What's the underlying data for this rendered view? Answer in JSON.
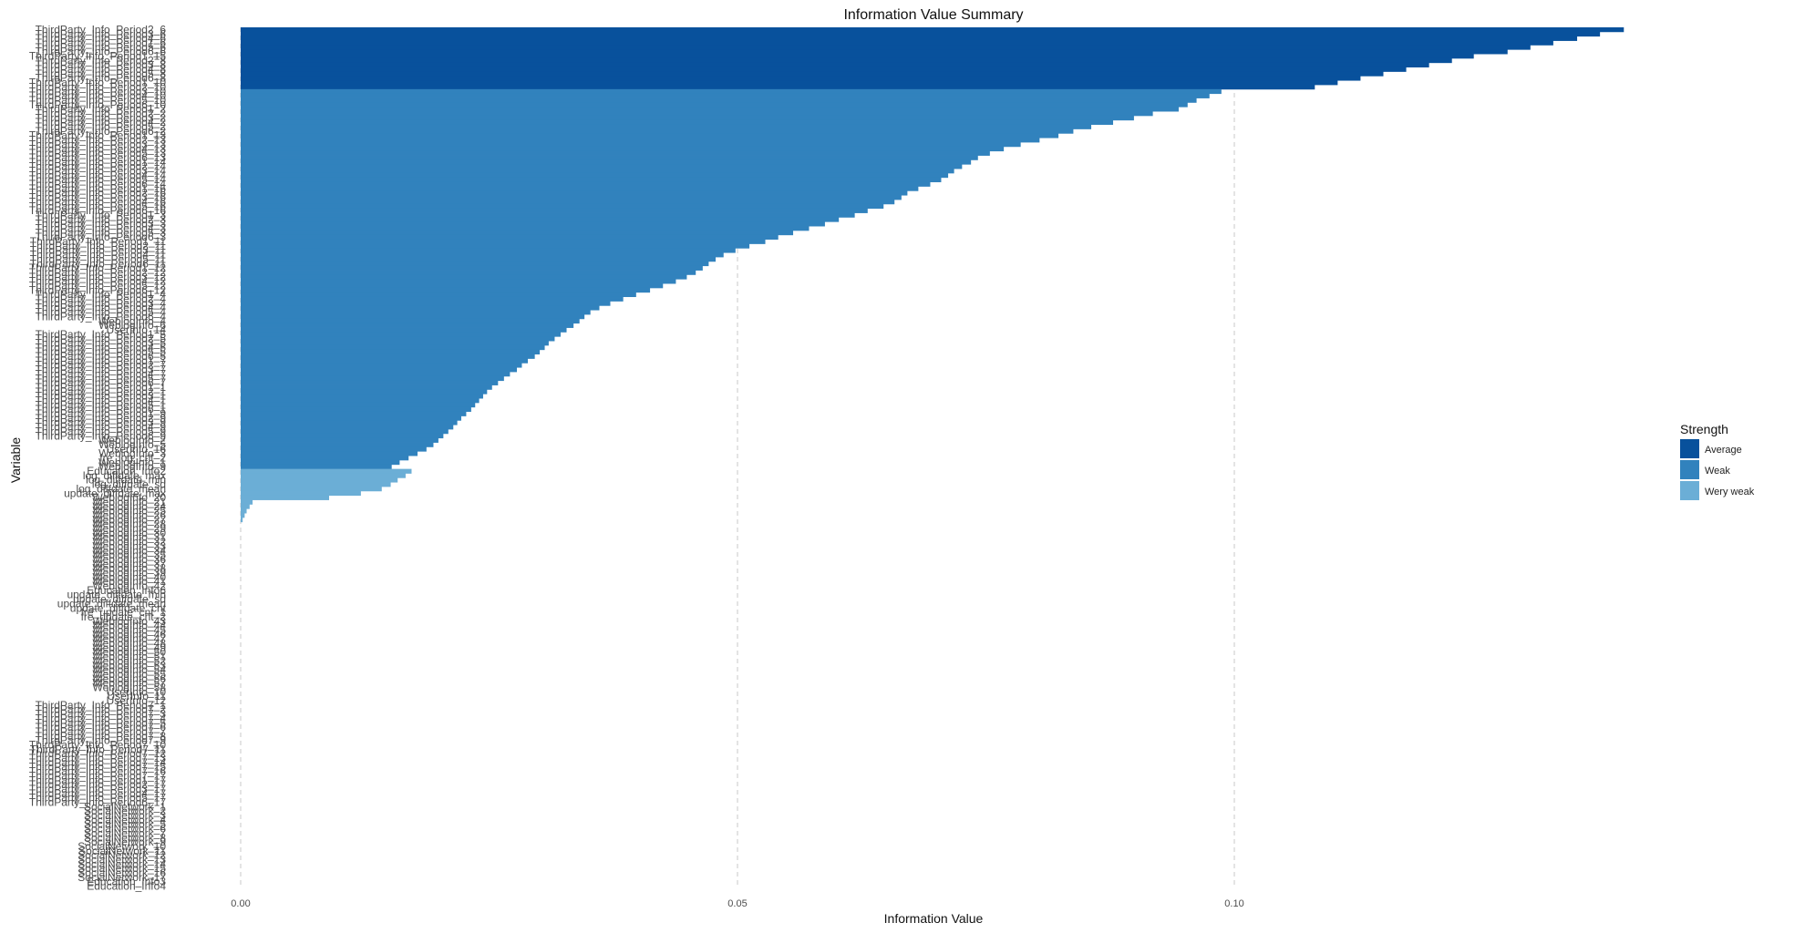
{
  "chart_data": {
    "type": "bar",
    "orientation": "horizontal",
    "title": "Information Value Summary",
    "xlabel": "Information Value",
    "ylabel": "Variable",
    "xlim": [
      0,
      0.14
    ],
    "x_ticks": [
      {
        "value": 0.0,
        "label": "0.00"
      },
      {
        "value": 0.05,
        "label": "0.05"
      },
      {
        "value": 0.1,
        "label": "0.10"
      }
    ],
    "grid": "vertical-dashed",
    "legend": {
      "title": "Strength",
      "placement": "right",
      "entries": [
        {
          "key": "Average",
          "label": "Average",
          "color": "#08519c"
        },
        {
          "key": "Weak",
          "label": "Weak",
          "color": "#3182bd"
        },
        {
          "key": "Very weak",
          "label": "Wery weak",
          "color": "#6baed6"
        }
      ]
    },
    "visible_category_labels": [
      "ThirdParty_Info_Period2_6",
      "ThirdParty_Info_Period3_6",
      "ThirdParty_Info_Period4_6",
      "ThirdParty_Info_Period1_6",
      "ThirdParty_Info_Period5_6",
      "ThirdParty_Info_Period6_6",
      "ThirdParty_Info_Period1_15",
      "ThirdParty_Info_Period2_8",
      "ThirdParty_Info_Period3_8",
      "ThirdParty_Info_Period4_8",
      "ThirdParty_Info_Period5_8",
      "ThirdParty_Info_Period6_8",
      "ThirdParty_Info_Period1_10",
      "ThirdParty_Info_Period2_10",
      "ThirdParty_Info_Period3_10",
      "ThirdParty_Info_Period4_10",
      "ThirdParty_Info_Period5_10",
      "ThirdParty_Info_Period6_10",
      "ThirdParty_Info_Period1_2",
      "ThirdParty_Info_Period2_2",
      "ThirdParty_Info_Period3_2",
      "ThirdParty_Info_Period4_2",
      "ThirdParty_Info_Period5_2",
      "ThirdParty_Info_Period6_2",
      "ThirdParty_Info_Period1_13",
      "ThirdParty_Info_Period2_13",
      "ThirdParty_Info_Period3_13",
      "ThirdParty_Info_Period4_13",
      "ThirdParty_Info_Period5_13",
      "ThirdParty_Info_Period6_13",
      "ThirdParty_Info_Period1_14",
      "ThirdParty_Info_Period2_14",
      "ThirdParty_Info_Period3_14",
      "ThirdParty_Info_Period4_14",
      "ThirdParty_Info_Period5_14",
      "ThirdParty_Info_Period6_14",
      "ThirdParty_Info_Period1_16",
      "ThirdParty_Info_Period2_16",
      "ThirdParty_Info_Period3_16",
      "ThirdParty_Info_Period4_16",
      "ThirdParty_Info_Period5_16",
      "ThirdParty_Info_Period6_16",
      "ThirdParty_Info_Period1_3",
      "ThirdParty_Info_Period2_3",
      "ThirdParty_Info_Period3_3",
      "ThirdParty_Info_Period4_3",
      "ThirdParty_Info_Period5_3",
      "ThirdParty_Info_Period6_3",
      "ThirdParty_Info_Period1_11",
      "ThirdParty_Info_Period2_11",
      "ThirdParty_Info_Period3_11",
      "ThirdParty_Info_Period4_11",
      "ThirdParty_Info_Period5_11",
      "ThirdParty_Info_Period6_11",
      "ThirdParty_Info_Period1_12",
      "ThirdParty_Info_Period2_12",
      "ThirdParty_Info_Period3_12",
      "ThirdParty_Info_Period4_12",
      "ThirdParty_Info_Period5_12",
      "ThirdParty_Info_Period6_12",
      "ThirdParty_Info_Period1_4",
      "ThirdParty_Info_Period2_4",
      "ThirdParty_Info_Period3_4",
      "ThirdParty_Info_Period4_4",
      "ThirdParty_Info_Period5_4",
      "ThirdParty_Info_Period6_4",
      "WeblogInfo_4",
      "WeblogInfo_6",
      "UserInfo_14",
      "ThirdParty_Info_Period1_5",
      "ThirdParty_Info_Period2_5",
      "ThirdParty_Info_Period3_5",
      "ThirdParty_Info_Period4_5",
      "ThirdParty_Info_Period5_5",
      "ThirdParty_Info_Period6_5",
      "ThirdParty_Info_Period1_7",
      "ThirdParty_Info_Period2_7",
      "ThirdParty_Info_Period3_7",
      "ThirdParty_Info_Period4_7",
      "ThirdParty_Info_Period5_7",
      "ThirdParty_Info_Period6_7",
      "ThirdParty_Info_Period1_1",
      "ThirdParty_Info_Period2_1",
      "ThirdParty_Info_Period3_1",
      "ThirdParty_Info_Period4_1",
      "ThirdParty_Info_Period5_1",
      "ThirdParty_Info_Period6_1",
      "ThirdParty_Info_Period1_9",
      "ThirdParty_Info_Period2_9",
      "ThirdParty_Info_Period3_9",
      "ThirdParty_Info_Period4_9",
      "ThirdParty_Info_Period5_9",
      "ThirdParty_Info_Period6_9",
      "WeblogInfo_2",
      "WeblogInfo_5",
      "UserInfo_16",
      "WeblogInfo_3",
      "fre_log_cnt_2",
      "WeblogInfo_1",
      "WeblogInfo_9",
      "Education_Info2",
      "log_diffdate_max",
      "log_diffdate_min",
      "log_diffdate_sd",
      "log_diffdate_mean",
      "update_diffdate_max",
      "WeblogInfo_20",
      "WeblogInfo_21",
      "WeblogInfo_24",
      "WeblogInfo_25",
      "WeblogInfo_26",
      "WeblogInfo_27",
      "WeblogInfo_28",
      "WeblogInfo_29",
      "WeblogInfo_30",
      "WeblogInfo_31",
      "WeblogInfo_32",
      "WeblogInfo_33",
      "WeblogInfo_34",
      "WeblogInfo_35",
      "WeblogInfo_36",
      "WeblogInfo_37",
      "WeblogInfo_38",
      "WeblogInfo_39",
      "WeblogInfo_40",
      "WeblogInfo_41",
      "WeblogInfo_42",
      "Education_Info6",
      "update_diffdate_min",
      "update_diffdate_sd",
      "update_diffdate_mean",
      "update_diffdate_cnt",
      "fre_update_cnt_1",
      "fre_update_cnt_2",
      "WeblogInfo_43",
      "WeblogInfo_44",
      "WeblogInfo_45",
      "WeblogInfo_46",
      "WeblogInfo_47",
      "WeblogInfo_48",
      "WeblogInfo_49",
      "WeblogInfo_50",
      "WeblogInfo_51",
      "WeblogInfo_52",
      "WeblogInfo_53",
      "WeblogInfo_54",
      "WeblogInfo_55",
      "WeblogInfo_56",
      "WeblogInfo_57",
      "WeblogInfo_58",
      "UserInfo_10",
      "UserInfo_11",
      "UserInfo_12",
      "ThirdParty_Info_Period7_1",
      "ThirdParty_Info_Period7_2",
      "ThirdParty_Info_Period7_3",
      "ThirdParty_Info_Period7_4",
      "ThirdParty_Info_Period7_5",
      "ThirdParty_Info_Period7_6",
      "ThirdParty_Info_Period7_7",
      "ThirdParty_Info_Period7_8",
      "ThirdParty_Info_Period7_9",
      "ThirdParty_Info_Period7_10",
      "ThirdParty_Info_Period7_11",
      "ThirdParty_Info_Period7_12",
      "ThirdParty_Info_Period7_13",
      "ThirdParty_Info_Period7_14",
      "ThirdParty_Info_Period7_15",
      "ThirdParty_Info_Period7_16",
      "ThirdParty_Info_Period7_17",
      "ThirdParty_Info_Period1_17",
      "ThirdParty_Info_Period2_17",
      "ThirdParty_Info_Period3_17",
      "ThirdParty_Info_Period4_17",
      "ThirdParty_Info_Period5_17",
      "ThirdParty_Info_Period6_17",
      "SocialNetwork_1",
      "SocialNetwork_2",
      "SocialNetwork_3",
      "SocialNetwork_4",
      "SocialNetwork_5",
      "SocialNetwork_6",
      "SocialNetwork_7",
      "SocialNetwork_8",
      "SocialNetwork_9",
      "SocialNetwork_10",
      "SocialNetwork_11",
      "SocialNetwork_12",
      "SocialNetwork_13",
      "SocialNetwork_14",
      "SocialNetwork_15",
      "SocialNetwork_16",
      "SocialNetwork_17",
      "Education_Info3",
      "Education_Info4"
    ],
    "series": [
      {
        "name": "Average",
        "values": [
          0.1392,
          0.1368,
          0.1345,
          0.1321,
          0.1298,
          0.1275,
          0.1241,
          0.1219,
          0.1196,
          0.1173,
          0.115,
          0.1127,
          0.1104,
          0.1081
        ]
      },
      {
        "name": "Weak",
        "values": [
          0.0987,
          0.0975,
          0.0962,
          0.0953,
          0.0944,
          0.0918,
          0.0899,
          0.0878,
          0.0856,
          0.0838,
          0.0823,
          0.0804,
          0.0785,
          0.0768,
          0.0754,
          0.0742,
          0.0735,
          0.0726,
          0.0718,
          0.0712,
          0.0705,
          0.0694,
          0.0682,
          0.0671,
          0.0665,
          0.0658,
          0.0647,
          0.0631,
          0.0618,
          0.0602,
          0.0588,
          0.0572,
          0.0556,
          0.0541,
          0.0528,
          0.0512,
          0.0498,
          0.0486,
          0.0478,
          0.0471,
          0.0465,
          0.0458,
          0.0449,
          0.0438,
          0.0425,
          0.0412,
          0.0398,
          0.0385,
          0.0372,
          0.0361,
          0.0352,
          0.0346,
          0.0341,
          0.0335,
          0.0328,
          0.0322,
          0.0316,
          0.031,
          0.0306,
          0.0301,
          0.0296,
          0.0289,
          0.0283,
          0.0278,
          0.0271,
          0.0265,
          0.0259,
          0.0253,
          0.0248,
          0.0244,
          0.024,
          0.0236,
          0.0232,
          0.0227,
          0.0222,
          0.0218,
          0.0214,
          0.0209,
          0.0204,
          0.0199,
          0.0194,
          0.0187,
          0.0178,
          0.0169,
          0.016,
          0.0152
        ]
      },
      {
        "name": "Very weak",
        "values": [
          0.0172,
          0.0166,
          0.0158,
          0.0151,
          0.0142,
          0.0121,
          0.0089,
          0.0012,
          0.0009,
          0.0006,
          0.0004,
          0.0002
        ]
      }
    ]
  }
}
